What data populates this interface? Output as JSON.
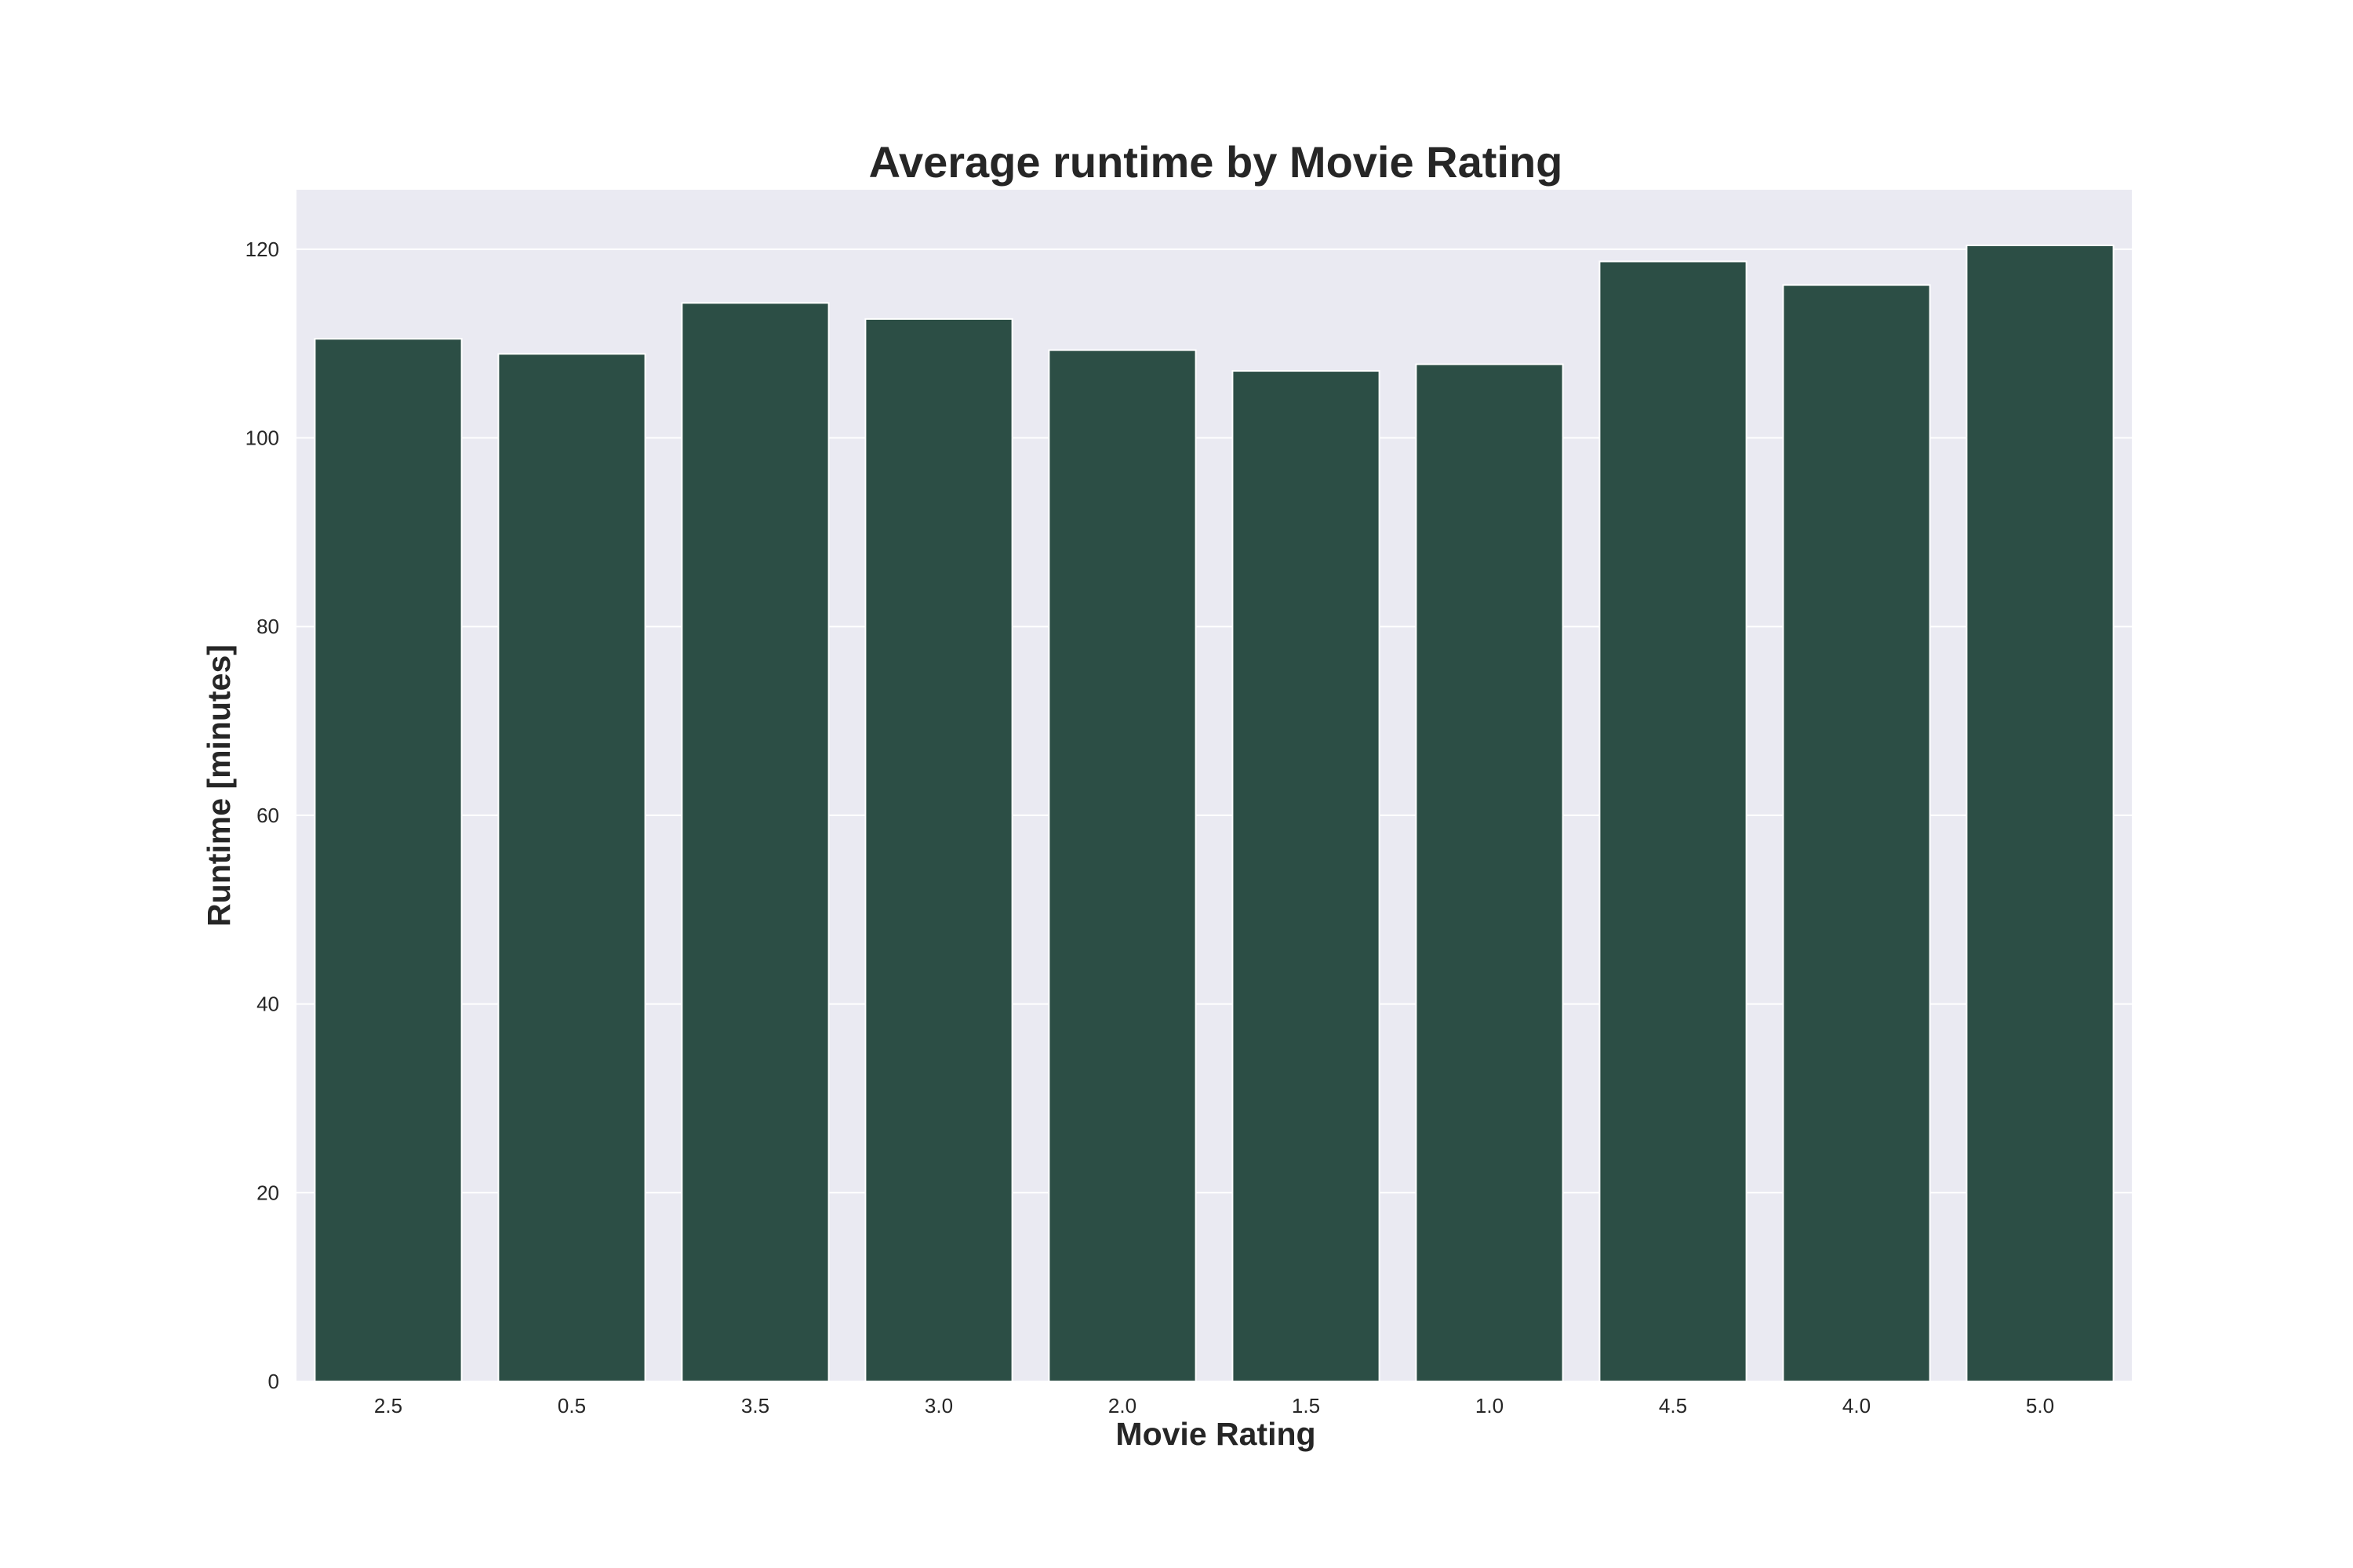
{
  "chart_data": {
    "type": "bar",
    "title": "Average runtime by Movie Rating",
    "xlabel": "Movie Rating",
    "ylabel": "Runtime [minutes]",
    "categories": [
      "2.5",
      "0.5",
      "3.5",
      "3.0",
      "2.0",
      "1.5",
      "1.0",
      "4.5",
      "4.0",
      "5.0"
    ],
    "values": [
      110.5,
      108.9,
      114.3,
      112.6,
      109.3,
      107.1,
      107.8,
      118.7,
      116.2,
      120.4
    ],
    "ylim": [
      0,
      126.3
    ],
    "yticks": [
      0,
      20,
      40,
      60,
      80,
      100,
      120
    ],
    "grid": true,
    "legend": "none",
    "colors": {
      "bar": "#2c4e45",
      "plot_background": "#eaeaf2",
      "grid": "#ffffff",
      "text": "#262626"
    }
  }
}
